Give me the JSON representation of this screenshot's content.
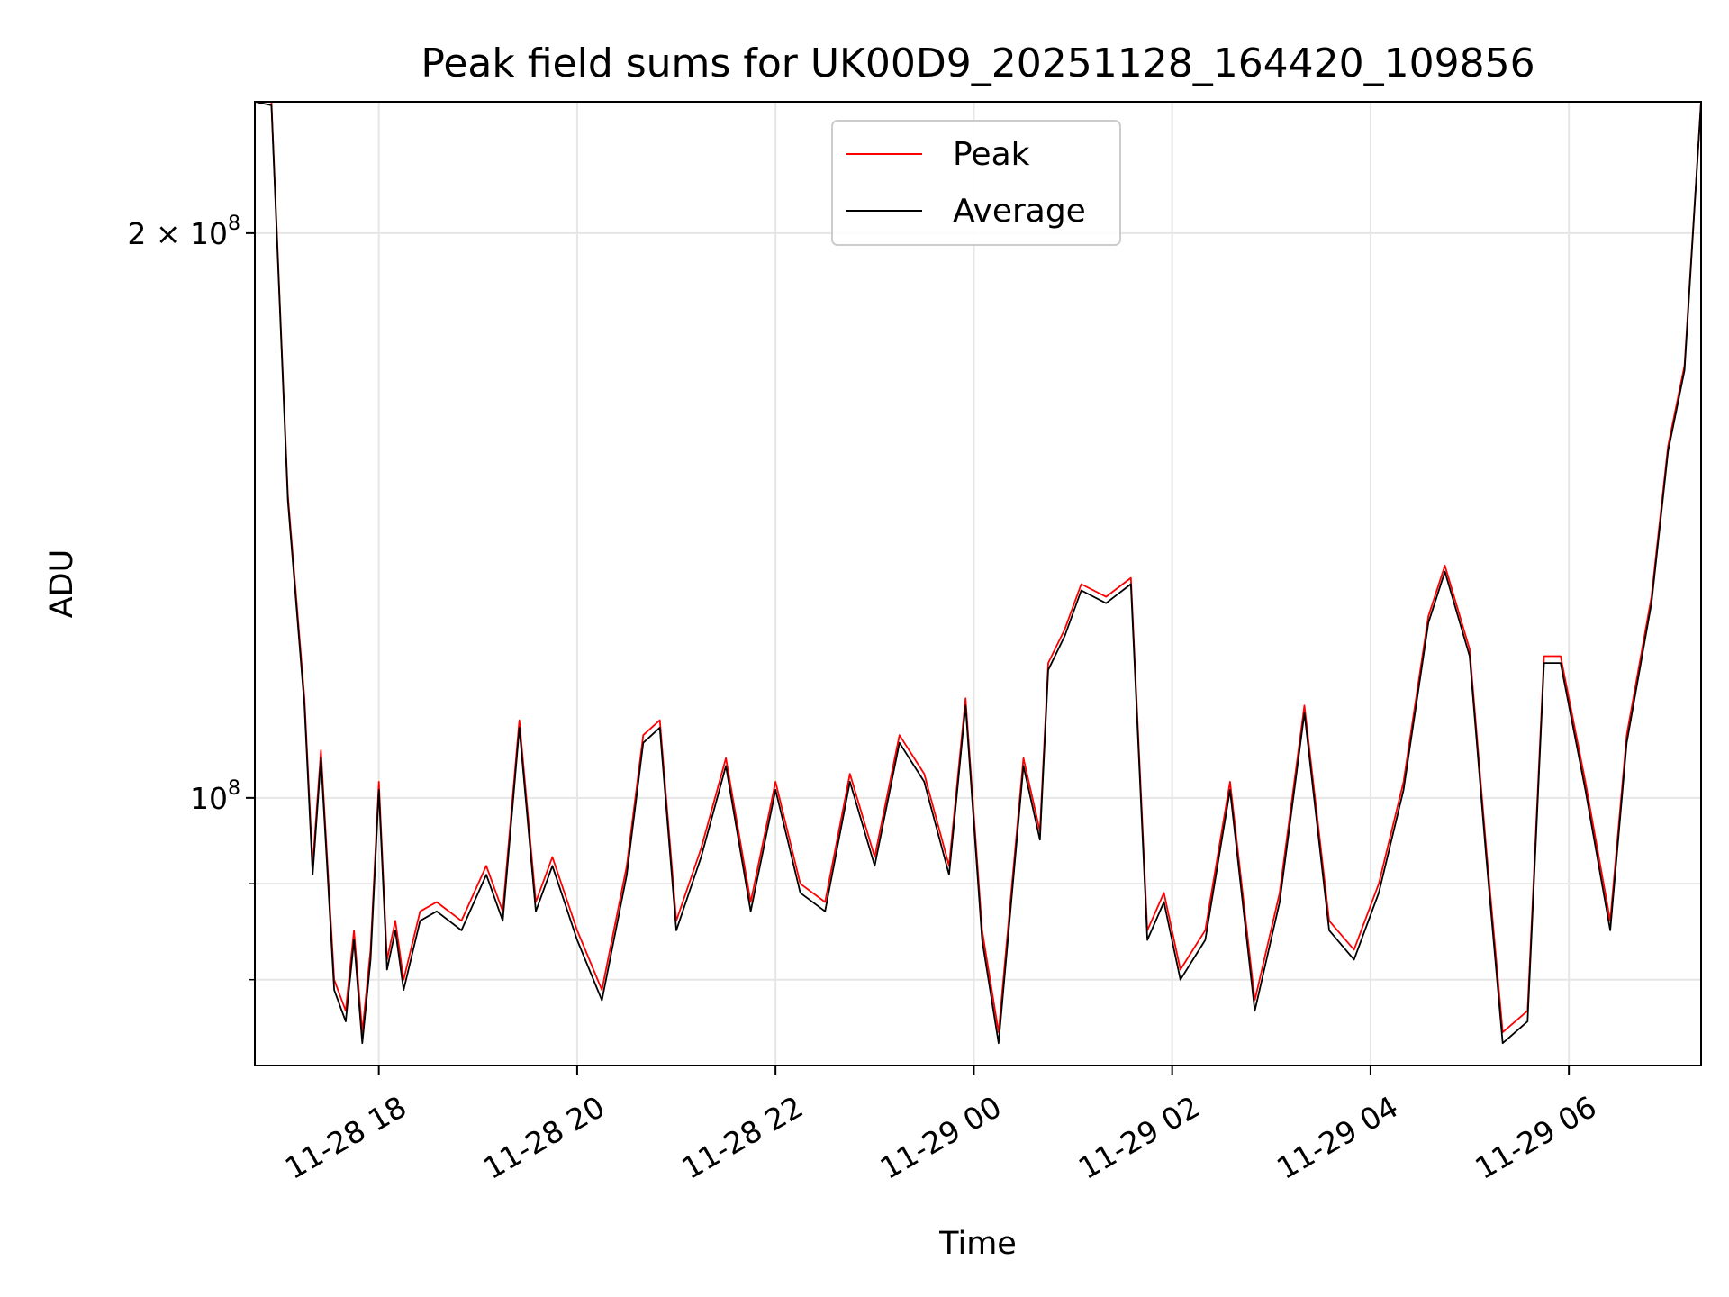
{
  "chart_data": {
    "type": "line",
    "title": "Peak field sums for UK00D9_20251128_164420_109856",
    "xlabel": "Time",
    "ylabel": "ADU",
    "y_scale": "log",
    "xlim": [
      "2025-11-28 16:45",
      "2025-11-29 07:20"
    ],
    "ylim": [
      72000000,
      235000000
    ],
    "grid": true,
    "legend_position": "top-center",
    "x_ticks": [
      {
        "value": "2025-11-28 18:00",
        "label": "11-28 18"
      },
      {
        "value": "2025-11-28 20:00",
        "label": "11-28 20"
      },
      {
        "value": "2025-11-28 22:00",
        "label": "11-28 22"
      },
      {
        "value": "2025-11-29 00:00",
        "label": "11-29 00"
      },
      {
        "value": "2025-11-29 02:00",
        "label": "11-29 02"
      },
      {
        "value": "2025-11-29 04:00",
        "label": "11-29 04"
      },
      {
        "value": "2025-11-29 06:00",
        "label": "11-29 06"
      }
    ],
    "y_ticks": [
      {
        "value": 100000000,
        "base": "10",
        "exp": "8",
        "prefix": ""
      },
      {
        "value": 200000000,
        "base": "10",
        "exp": "8",
        "prefix": "2 × "
      }
    ],
    "y_minor_ticks": [
      80000000,
      90000000
    ],
    "x": [
      "2025-11-28 16:45",
      "2025-11-28 16:55",
      "2025-11-28 17:05",
      "2025-11-28 17:15",
      "2025-11-28 17:20",
      "2025-11-28 17:25",
      "2025-11-28 17:33",
      "2025-11-28 17:40",
      "2025-11-28 17:45",
      "2025-11-28 17:50",
      "2025-11-28 17:55",
      "2025-11-28 18:00",
      "2025-11-28 18:05",
      "2025-11-28 18:10",
      "2025-11-28 18:15",
      "2025-11-28 18:25",
      "2025-11-28 18:35",
      "2025-11-28 18:50",
      "2025-11-28 19:05",
      "2025-11-28 19:15",
      "2025-11-28 19:25",
      "2025-11-28 19:35",
      "2025-11-28 19:45",
      "2025-11-28 20:00",
      "2025-11-28 20:15",
      "2025-11-28 20:30",
      "2025-11-28 20:40",
      "2025-11-28 20:50",
      "2025-11-28 21:00",
      "2025-11-28 21:15",
      "2025-11-28 21:30",
      "2025-11-28 21:45",
      "2025-11-28 22:00",
      "2025-11-28 22:15",
      "2025-11-28 22:30",
      "2025-11-28 22:45",
      "2025-11-28 23:00",
      "2025-11-28 23:15",
      "2025-11-28 23:30",
      "2025-11-28 23:45",
      "2025-11-28 23:55",
      "2025-11-29 00:05",
      "2025-11-29 00:15",
      "2025-11-29 00:30",
      "2025-11-29 00:40",
      "2025-11-29 00:45",
      "2025-11-29 00:55",
      "2025-11-29 01:05",
      "2025-11-29 01:20",
      "2025-11-29 01:35",
      "2025-11-29 01:45",
      "2025-11-29 01:55",
      "2025-11-29 02:05",
      "2025-11-29 02:20",
      "2025-11-29 02:35",
      "2025-11-29 02:50",
      "2025-11-29 03:05",
      "2025-11-29 03:20",
      "2025-11-29 03:35",
      "2025-11-29 03:50",
      "2025-11-29 04:05",
      "2025-11-29 04:20",
      "2025-11-29 04:35",
      "2025-11-29 04:45",
      "2025-11-29 05:00",
      "2025-11-29 05:10",
      "2025-11-29 05:20",
      "2025-11-29 05:35",
      "2025-11-29 05:45",
      "2025-11-29 05:55",
      "2025-11-29 06:10",
      "2025-11-29 06:25",
      "2025-11-29 06:35",
      "2025-11-29 06:50",
      "2025-11-29 07:00",
      "2025-11-29 07:10",
      "2025-11-29 07:20"
    ],
    "series": [
      {
        "name": "Peak",
        "color": "#ff0000",
        "values": [
          235000000.0,
          235000000.0,
          145000000.0,
          113000000.0,
          92000000.0,
          106000000.0,
          80000000.0,
          77000000.0,
          85000000.0,
          75000000.0,
          83000000.0,
          102000000.0,
          82000000.0,
          86000000.0,
          80000000.0,
          87000000.0,
          88000000.0,
          86000000.0,
          92000000.0,
          87000000.0,
          110000000.0,
          88000000.0,
          93000000.0,
          85000000.0,
          79000000.0,
          92000000.0,
          108000000.0,
          110000000.0,
          86000000.0,
          94000000.0,
          105000000.0,
          88000000.0,
          102000000.0,
          90000000.0,
          88000000.0,
          103000000.0,
          93000000.0,
          108000000.0,
          103000000.0,
          92000000.0,
          113000000.0,
          85000000.0,
          75000000.0,
          105000000.0,
          96000000.0,
          118000000.0,
          123000000.0,
          130000000.0,
          128000000.0,
          131000000.0,
          85000000.0,
          89000000.0,
          81000000.0,
          85000000.0,
          102000000.0,
          78000000.0,
          89000000.0,
          112000000.0,
          86000000.0,
          83000000.0,
          90000000.0,
          102000000.0,
          125000000.0,
          133000000.0,
          120000000.0,
          94000000.0,
          75000000.0,
          77000000.0,
          119000000.0,
          119000000.0,
          102000000.0,
          86000000.0,
          108000000.0,
          128000000.0,
          154000000.0,
          170000000.0,
          235000000.0
        ]
      },
      {
        "name": "Average",
        "color": "#000000",
        "values": [
          235000000.0,
          234000000.0,
          144000000.0,
          112000000.0,
          91000000.0,
          105000000.0,
          79000000.0,
          76000000.0,
          84000000.0,
          74000000.0,
          82000000.0,
          101000000.0,
          81000000.0,
          85000000.0,
          79000000.0,
          86000000.0,
          87000000.0,
          85000000.0,
          91000000.0,
          86000000.0,
          109000000.0,
          87000000.0,
          92000000.0,
          84000000.0,
          78000000.0,
          91000000.0,
          107000000.0,
          109000000.0,
          85000000.0,
          93000000.0,
          104000000.0,
          87000000.0,
          101000000.0,
          89000000.0,
          87000000.0,
          102000000.0,
          92000000.0,
          107000000.0,
          102000000.0,
          91000000.0,
          112000000.0,
          84000000.0,
          74000000.0,
          104000000.0,
          95000000.0,
          117000000.0,
          122000000.0,
          129000000.0,
          127000000.0,
          130000000.0,
          84000000.0,
          88000000.0,
          80000000.0,
          84000000.0,
          101000000.0,
          77000000.0,
          88000000.0,
          111000000.0,
          85000000.0,
          82000000.0,
          89000000.0,
          101000000.0,
          124000000.0,
          132000000.0,
          119000000.0,
          93000000.0,
          74000000.0,
          76000000.0,
          118000000.0,
          118000000.0,
          101000000.0,
          85000000.0,
          107000000.0,
          127000000.0,
          153000000.0,
          169000000.0,
          235000000.0
        ]
      }
    ]
  }
}
